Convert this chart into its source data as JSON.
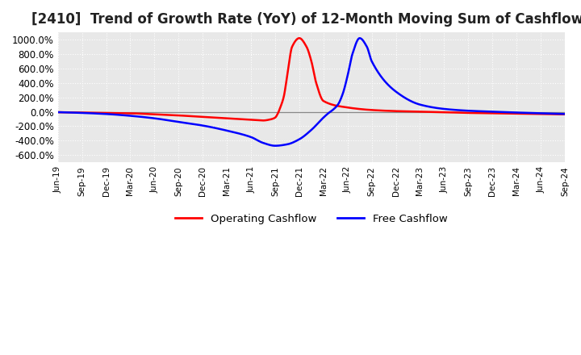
{
  "title": "[2410]  Trend of Growth Rate (YoY) of 12-Month Moving Sum of Cashflows",
  "title_fontsize": 12,
  "ylim": [
    -700,
    1100
  ],
  "yticks": [
    -600,
    -400,
    -200,
    0,
    200,
    400,
    600,
    800,
    1000
  ],
  "ytick_labels": [
    "-600.0%",
    "-400.0%",
    "-200.0%",
    "0.0%",
    "200.0%",
    "400.0%",
    "600.0%",
    "800.0%",
    "1000.0%"
  ],
  "background_color": "#ffffff",
  "plot_bg_color": "#e8e8e8",
  "grid_color": "#ffffff",
  "operating_color": "#ff0000",
  "free_color": "#0000ff",
  "legend_labels": [
    "Operating Cashflow",
    "Free Cashflow"
  ],
  "x_dates": [
    "Jun-19",
    "Sep-19",
    "Dec-19",
    "Mar-20",
    "Jun-20",
    "Sep-20",
    "Dec-20",
    "Mar-21",
    "Jun-21",
    "Sep-21",
    "Dec-21",
    "Mar-22",
    "Jun-22",
    "Sep-22",
    "Dec-22",
    "Mar-23",
    "Jun-23",
    "Sep-23",
    "Dec-23",
    "Mar-24",
    "Jun-24",
    "Sep-24"
  ],
  "operating_yoy_x": [
    0,
    1,
    2,
    3,
    4,
    5,
    6,
    7,
    8,
    8.5,
    8.8,
    9.0,
    9.1,
    9.2,
    9.35,
    9.5,
    9.7,
    10.0,
    10.3,
    10.5,
    10.7,
    11,
    12,
    13,
    14,
    15,
    16,
    17,
    18,
    19,
    20,
    21
  ],
  "operating_yoy_y": [
    -5,
    -10,
    -15,
    -20,
    -35,
    -50,
    -70,
    -90,
    -110,
    -120,
    -105,
    -80,
    -30,
    50,
    200,
    500,
    900,
    1020,
    900,
    700,
    400,
    150,
    60,
    25,
    10,
    2,
    -5,
    -15,
    -20,
    -25,
    -30,
    -35
  ],
  "free_yoy_x": [
    0,
    1,
    2,
    3,
    4,
    5,
    6,
    7,
    8,
    8.5,
    9,
    9.5,
    10,
    10.5,
    11,
    11.2,
    11.4,
    11.6,
    11.8,
    12.0,
    12.2,
    12.5,
    12.8,
    13,
    14,
    15,
    16,
    17,
    18,
    19,
    20,
    21
  ],
  "free_yoy_y": [
    -5,
    -15,
    -30,
    -55,
    -90,
    -140,
    -190,
    -260,
    -350,
    -430,
    -470,
    -450,
    -380,
    -250,
    -80,
    -20,
    30,
    100,
    250,
    500,
    800,
    1020,
    900,
    700,
    280,
    100,
    40,
    15,
    2,
    -10,
    -20,
    -30
  ]
}
